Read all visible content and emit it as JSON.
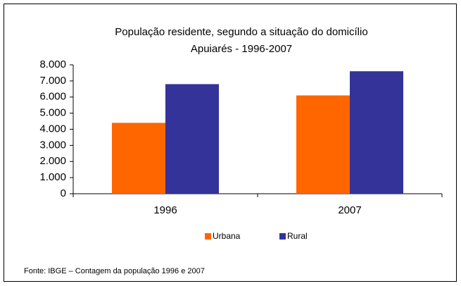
{
  "chart_data": {
    "type": "bar",
    "title": "População residente, segundo a situação do domicílio",
    "subtitle": "Apuiarés - 1996-2007",
    "categories": [
      "1996",
      "2007"
    ],
    "series": [
      {
        "name": "Urbana",
        "color": "#ff6600",
        "values": [
          4400,
          6100
        ]
      },
      {
        "name": "Rural",
        "color": "#333399",
        "values": [
          6800,
          7600
        ]
      }
    ],
    "ylim": [
      0,
      8000
    ],
    "yticks": [
      0,
      {
        "value": 1000,
        "label": "1.000"
      },
      {
        "value": 2000,
        "label": "2.000"
      },
      {
        "value": 3000,
        "label": "3.000"
      },
      {
        "value": 4000,
        "label": "4.000"
      },
      {
        "value": 5000,
        "label": "5.000"
      },
      {
        "value": 6000,
        "label": "6.000"
      },
      {
        "value": 7000,
        "label": "7.000"
      },
      {
        "value": 8000,
        "label": "8.000"
      }
    ],
    "legend": "bottom",
    "source": "Fonte: IBGE – Contagem da população 1996 e 2007"
  }
}
